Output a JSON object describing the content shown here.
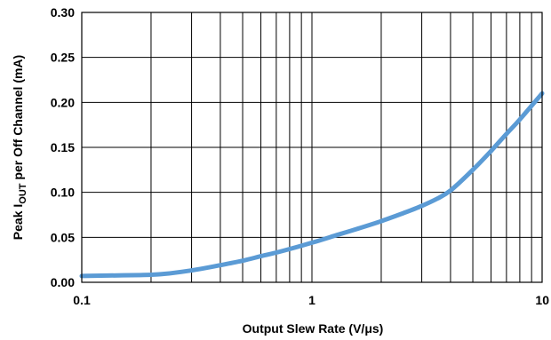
{
  "chart_data": {
    "type": "line",
    "x_scale": "log",
    "xlim": [
      0.1,
      10
    ],
    "ylim": [
      0.0,
      0.3
    ],
    "xlabel": "Output Slew Rate (V/μs)",
    "ylabel_parts": [
      "Peak I",
      "OUT",
      " per Off Channel (mA)"
    ],
    "x_ticks": [
      {
        "value": 0.1,
        "label": "0.1"
      },
      {
        "value": 1,
        "label": "1"
      },
      {
        "value": 10,
        "label": "10"
      }
    ],
    "y_ticks": [
      {
        "value": 0.0,
        "label": "0.00"
      },
      {
        "value": 0.05,
        "label": "0.05"
      },
      {
        "value": 0.1,
        "label": "0.10"
      },
      {
        "value": 0.15,
        "label": "0.15"
      },
      {
        "value": 0.2,
        "label": "0.20"
      },
      {
        "value": 0.25,
        "label": "0.25"
      },
      {
        "value": 0.3,
        "label": "0.30"
      }
    ],
    "grid": true,
    "series": [
      {
        "color": "#5b9bd5",
        "x": [
          0.1,
          0.13,
          0.18,
          0.22,
          0.27,
          0.33,
          0.4,
          0.5,
          0.6,
          0.75,
          1.0,
          1.3,
          1.6,
          2.0,
          2.5,
          3.0,
          3.5,
          4.0,
          5.0,
          6.0,
          7.0,
          8.0,
          10.0
        ],
        "y": [
          0.007,
          0.0075,
          0.008,
          0.009,
          0.0115,
          0.015,
          0.019,
          0.024,
          0.029,
          0.035,
          0.044,
          0.053,
          0.06,
          0.068,
          0.077,
          0.085,
          0.093,
          0.102,
          0.125,
          0.146,
          0.165,
          0.181,
          0.21
        ]
      }
    ]
  }
}
